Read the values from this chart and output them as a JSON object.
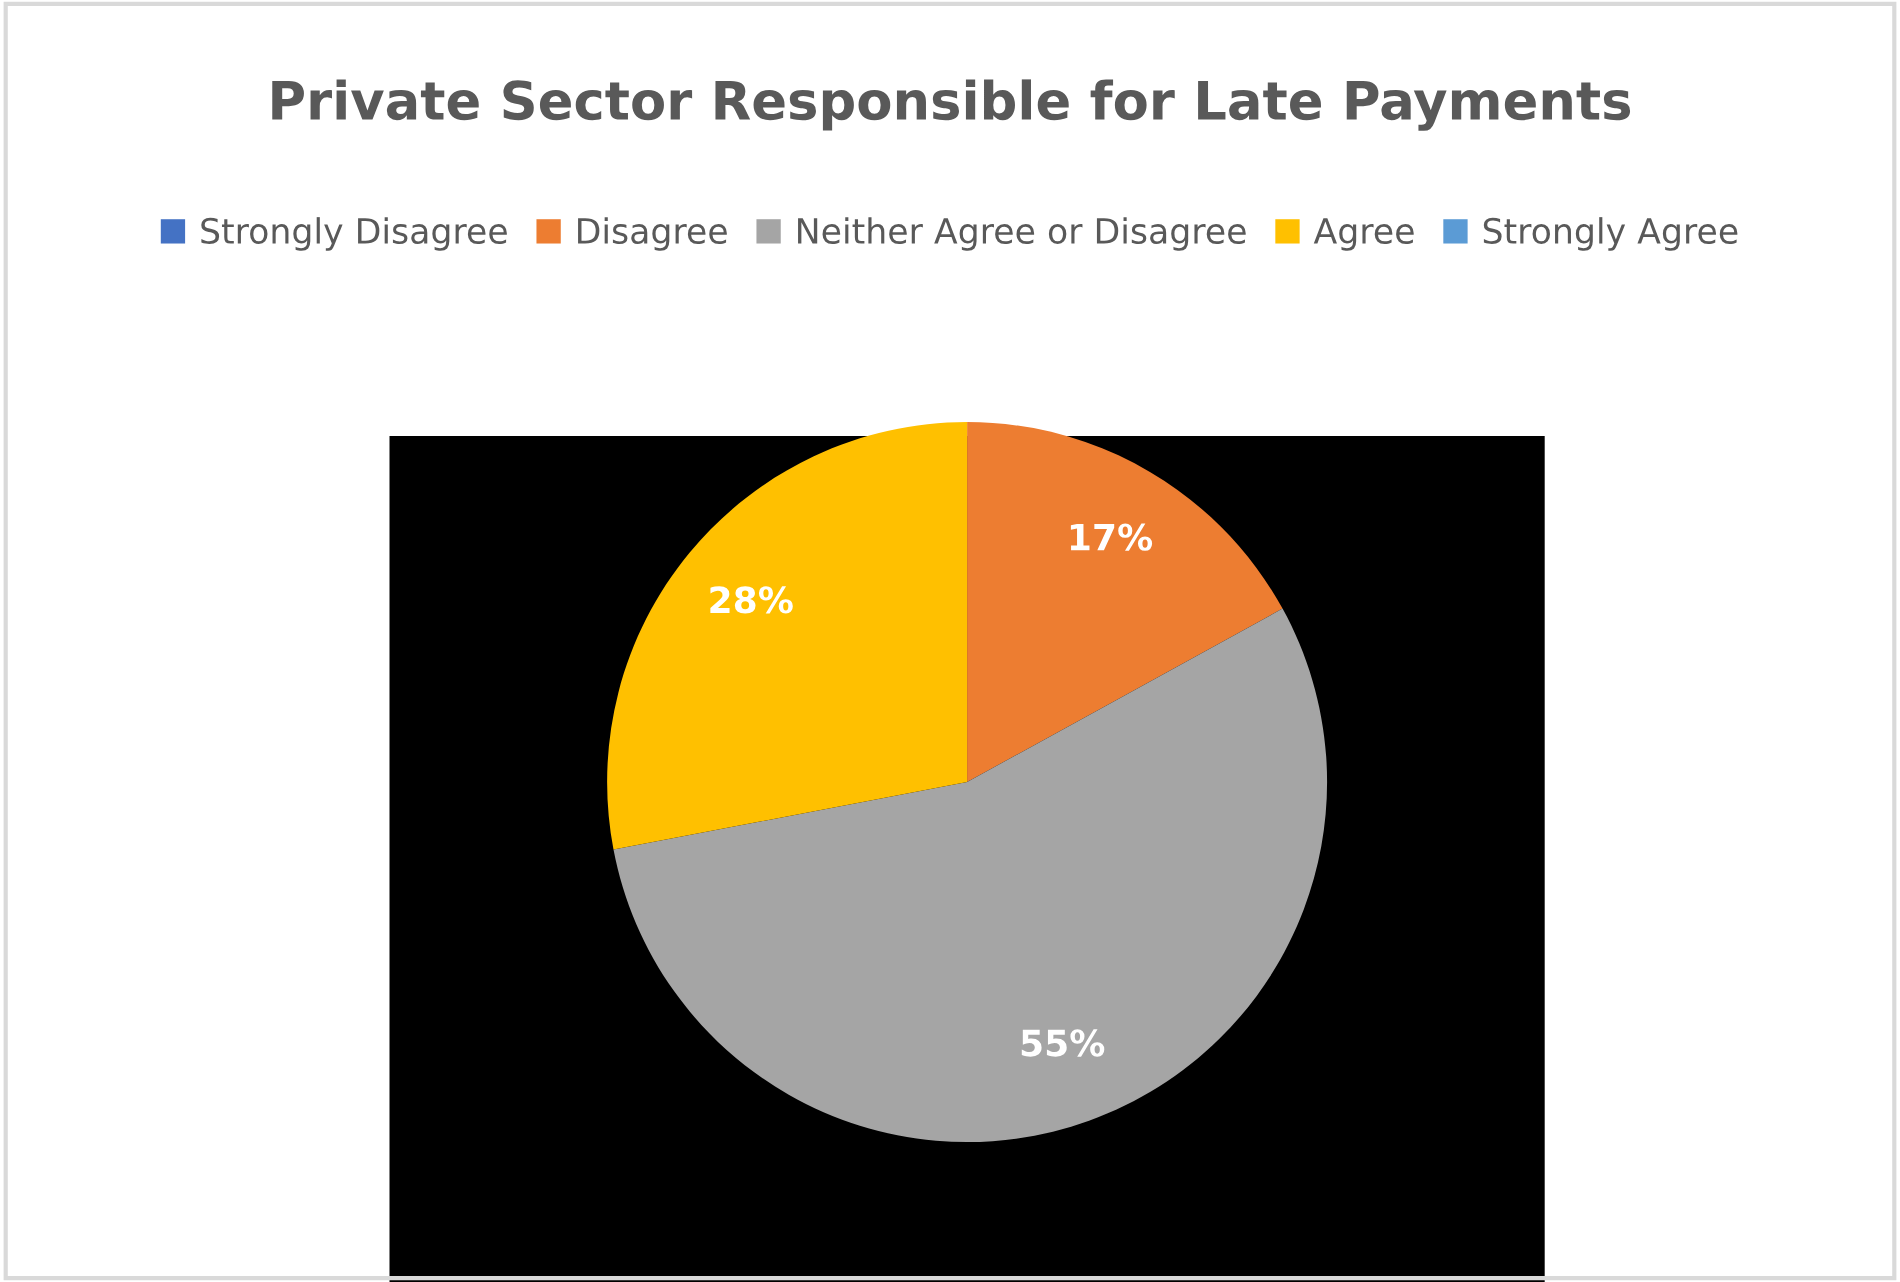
{
  "chart_data": {
    "type": "pie",
    "title": "Private Sector Responsible for Late Payments",
    "categories": [
      "Strongly Disagree",
      "Disagree",
      "Neither Agree or Disagree",
      "Agree",
      "Strongly Agree"
    ],
    "values": [
      0,
      17,
      55,
      28,
      0
    ],
    "colors": [
      "#4472c4",
      "#ed7d31",
      "#a5a5a5",
      "#ffc000",
      "#5b9bd5"
    ],
    "value_labels": [
      null,
      "17%",
      "55%",
      "28%",
      null
    ],
    "legend": "top"
  }
}
